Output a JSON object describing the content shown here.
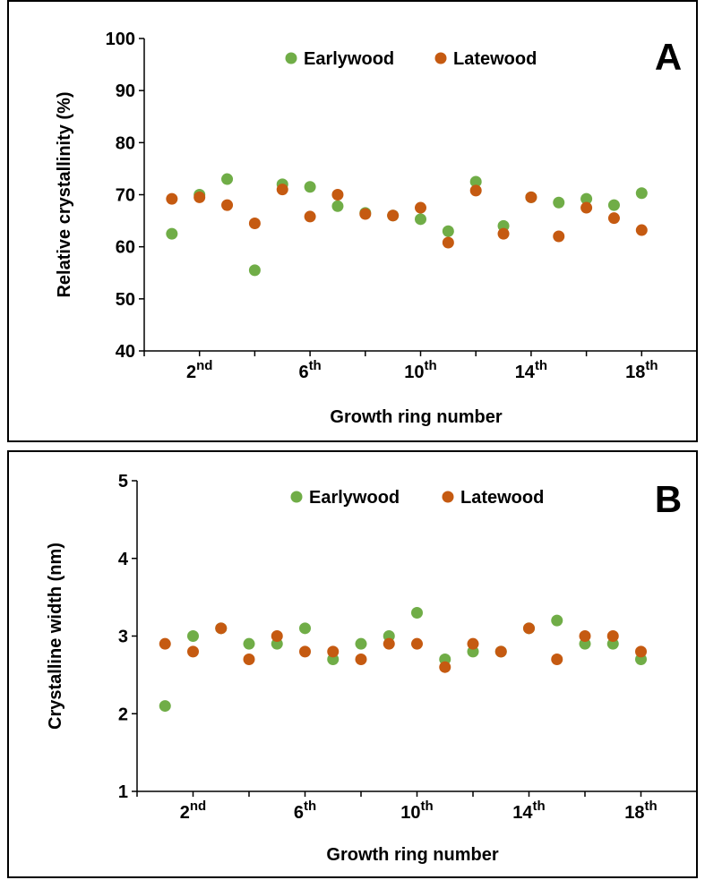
{
  "chart_data": [
    {
      "type": "scatter",
      "panel_label": "A",
      "xlabel": "Growth ring number",
      "ylabel": "Relative crystallinity (%)",
      "ylim": [
        40,
        100
      ],
      "yticks": [
        40,
        50,
        60,
        70,
        80,
        90,
        100
      ],
      "xlim": [
        0,
        20
      ],
      "xticks": [
        {
          "x": 2,
          "base": "2",
          "sup": "nd"
        },
        {
          "x": 6,
          "base": "6",
          "sup": "th"
        },
        {
          "x": 10,
          "base": "10",
          "sup": "th"
        },
        {
          "x": 14,
          "base": "14",
          "sup": "th"
        },
        {
          "x": 18,
          "base": "18",
          "sup": "th"
        }
      ],
      "legend_position": "top-center",
      "series": [
        {
          "name": "Earlywood",
          "color": "#70ad47",
          "x": [
            1,
            2,
            3,
            4,
            5,
            6,
            7,
            8,
            9,
            10,
            11,
            12,
            13,
            14,
            15,
            16,
            17,
            18
          ],
          "y": [
            62.5,
            70.0,
            73.0,
            55.5,
            72.0,
            71.5,
            67.8,
            66.5,
            66.0,
            65.3,
            63.0,
            72.5,
            64.0,
            69.5,
            68.5,
            69.2,
            68.0,
            70.3
          ]
        },
        {
          "name": "Latewood",
          "color": "#c55a11",
          "x": [
            1,
            2,
            3,
            4,
            5,
            6,
            7,
            8,
            9,
            10,
            11,
            12,
            13,
            14,
            15,
            16,
            17,
            18
          ],
          "y": [
            69.2,
            69.5,
            68.0,
            64.5,
            71.0,
            65.8,
            70.0,
            66.3,
            66.0,
            67.5,
            60.8,
            70.8,
            62.5,
            69.5,
            62.0,
            67.5,
            65.5,
            63.2
          ]
        }
      ]
    },
    {
      "type": "scatter",
      "panel_label": "B",
      "xlabel": "Growth ring number",
      "ylabel": "Crystalline width (nm)",
      "ylim": [
        1,
        5
      ],
      "yticks": [
        1,
        2,
        3,
        4,
        5
      ],
      "xlim": [
        0,
        20
      ],
      "xticks": [
        {
          "x": 2,
          "base": "2",
          "sup": "nd"
        },
        {
          "x": 6,
          "base": "6",
          "sup": "th"
        },
        {
          "x": 10,
          "base": "10",
          "sup": "th"
        },
        {
          "x": 14,
          "base": "14",
          "sup": "th"
        },
        {
          "x": 18,
          "base": "18",
          "sup": "th"
        }
      ],
      "legend_position": "top-center",
      "series": [
        {
          "name": "Earlywood",
          "color": "#70ad47",
          "x": [
            1,
            2,
            3,
            4,
            5,
            6,
            7,
            8,
            9,
            10,
            11,
            12,
            13,
            14,
            15,
            16,
            17,
            18
          ],
          "y": [
            2.1,
            3.0,
            3.1,
            2.9,
            2.9,
            3.1,
            2.7,
            2.9,
            3.0,
            3.3,
            2.7,
            2.8,
            2.8,
            3.1,
            3.2,
            2.9,
            2.9,
            2.7
          ]
        },
        {
          "name": "Latewood",
          "color": "#c55a11",
          "x": [
            1,
            2,
            3,
            4,
            5,
            6,
            7,
            8,
            9,
            10,
            11,
            12,
            13,
            14,
            15,
            16,
            17,
            18
          ],
          "y": [
            2.9,
            2.8,
            3.1,
            2.7,
            3.0,
            2.8,
            2.8,
            2.7,
            2.9,
            2.9,
            2.6,
            2.9,
            2.8,
            3.1,
            2.7,
            3.0,
            3.0,
            2.8
          ]
        }
      ]
    }
  ]
}
